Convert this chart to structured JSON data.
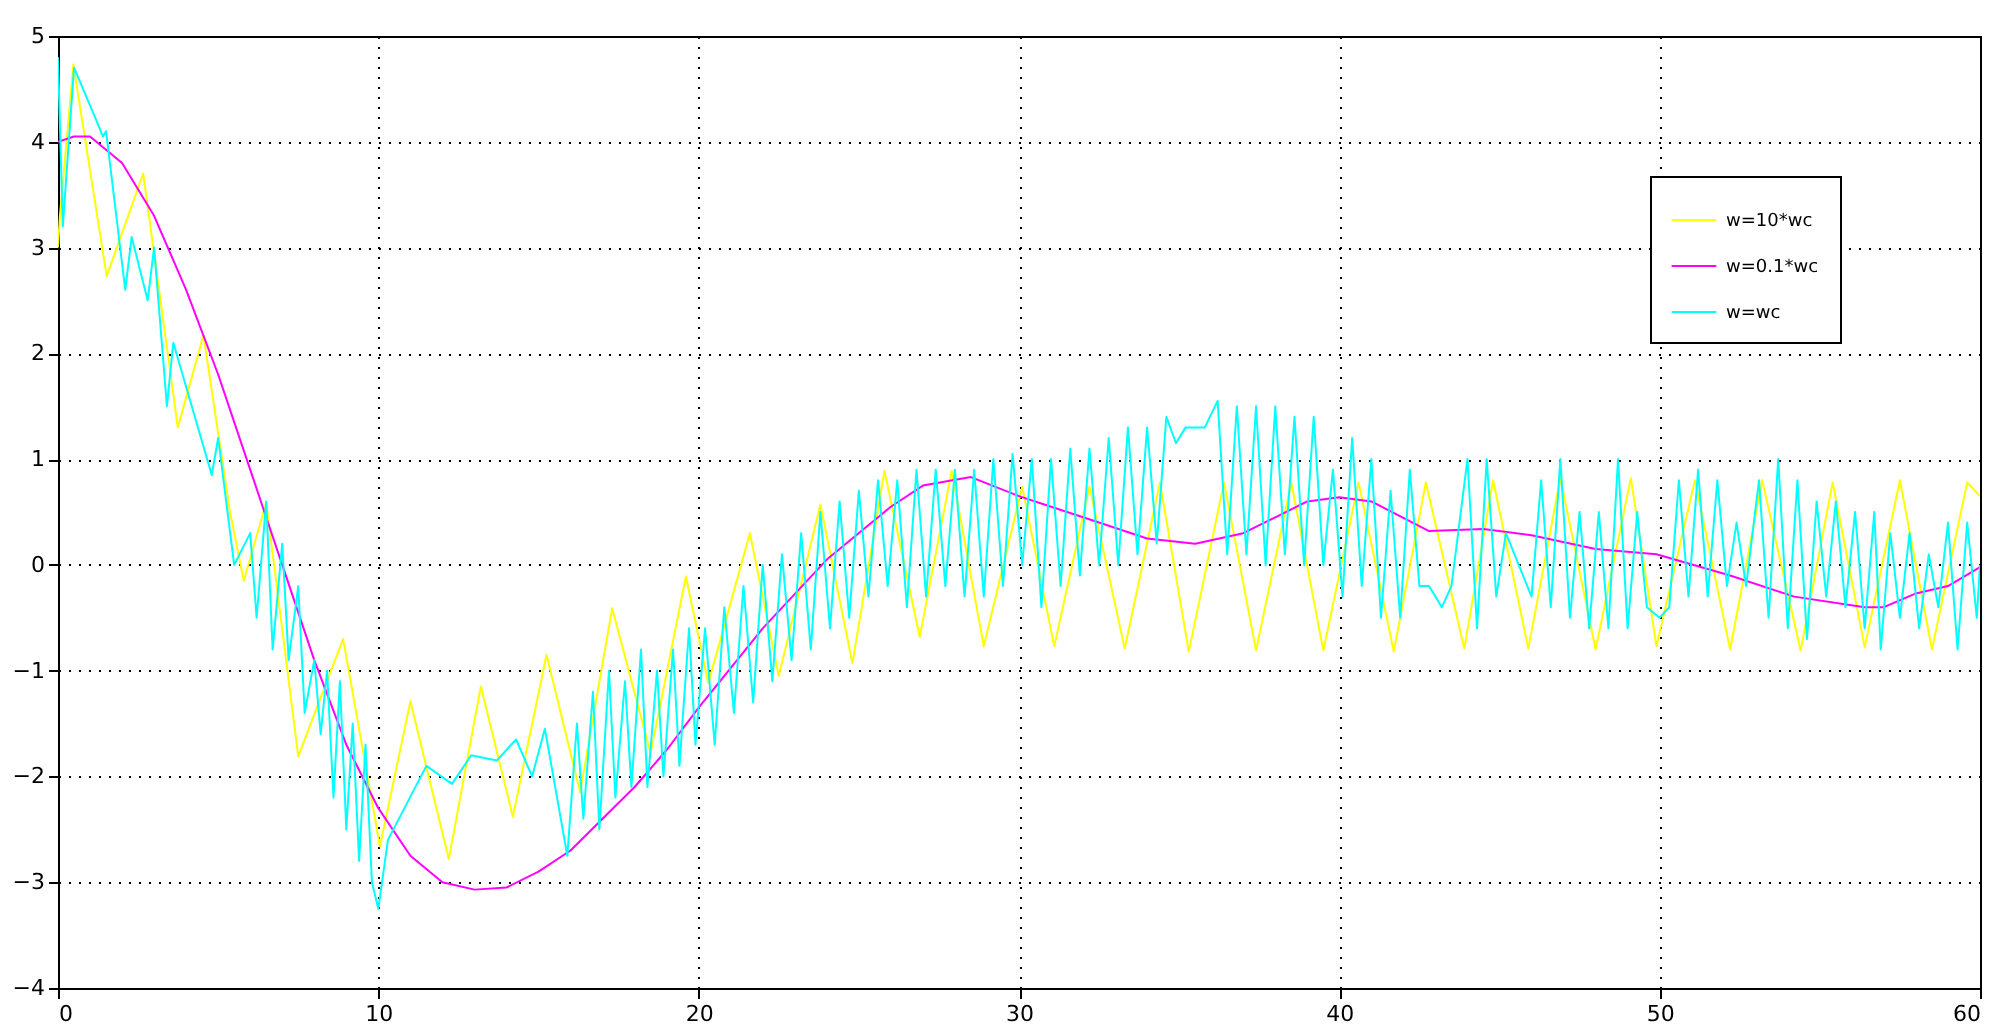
{
  "chart_data": {
    "type": "line",
    "xlim": [
      0,
      60
    ],
    "ylim": [
      -4,
      5
    ],
    "xticks": [
      0,
      10,
      20,
      30,
      40,
      50,
      60
    ],
    "yticks": [
      -4,
      -3,
      -2,
      -1,
      0,
      1,
      2,
      3,
      4,
      5
    ],
    "grid": true,
    "legend": "top right",
    "line_style": "solid",
    "series": [
      {
        "name": "w=10*wc",
        "color": "#ffff00",
        "x": [
          0,
          0.06,
          0.48,
          1.52,
          2.66,
          3.74,
          4.54,
          5.37,
          5.8,
          6.5,
          7.5,
          8.9,
          10.05,
          11.0,
          12.2,
          13.2,
          14.2,
          15.25,
          16.3,
          17.3,
          18.5,
          19.6,
          20.3,
          21.6,
          22.5,
          23.8,
          24.8,
          25.8,
          26.9,
          27.9,
          28.9,
          30.1,
          31.1,
          32.2,
          33.3,
          34.4,
          35.3,
          36.4,
          37.4,
          38.5,
          39.5,
          40.6,
          41.7,
          42.7,
          43.9,
          44.8,
          45.9,
          46.9,
          48.0,
          49.1,
          49.9,
          51.1,
          52.2,
          53.2,
          54.4,
          55.4,
          56.4,
          57.5,
          58.5,
          59.6,
          60
        ],
        "values": [
          3.0,
          3.3,
          4.73,
          2.73,
          3.7,
          1.3,
          2.17,
          0.5,
          -0.15,
          0.59,
          -1.81,
          -0.7,
          -2.66,
          -1.29,
          -2.78,
          -1.15,
          -2.38,
          -0.85,
          -2.15,
          -0.41,
          -1.78,
          -0.11,
          -1.12,
          0.3,
          -1.05,
          0.57,
          -0.93,
          0.89,
          -0.68,
          0.89,
          -0.77,
          0.74,
          -0.77,
          0.74,
          -0.79,
          0.78,
          -0.82,
          0.78,
          -0.81,
          0.78,
          -0.81,
          0.78,
          -0.82,
          0.78,
          -0.79,
          0.8,
          -0.79,
          0.82,
          -0.8,
          0.82,
          -0.77,
          0.8,
          -0.8,
          0.8,
          -0.81,
          0.78,
          -0.78,
          0.8,
          -0.8,
          0.78,
          0.65
        ]
      },
      {
        "name": "w=0.1*wc",
        "color": "#ff00ff",
        "x": [
          0,
          0.5,
          1,
          2,
          3,
          4,
          5,
          6,
          7,
          8,
          9,
          10,
          11,
          12,
          13,
          14,
          15,
          16,
          17,
          18,
          19,
          20,
          22,
          24,
          26,
          27,
          28.5,
          30,
          31,
          32,
          34,
          35.5,
          37,
          38,
          39,
          40,
          41,
          42.8,
          44.5,
          46,
          48,
          49.9,
          52.2,
          54.2,
          56.4,
          57,
          58,
          59,
          60
        ],
        "values": [
          4.0,
          4.05,
          4.05,
          3.8,
          3.3,
          2.6,
          1.8,
          0.9,
          0.0,
          -0.9,
          -1.7,
          -2.3,
          -2.75,
          -3.0,
          -3.07,
          -3.05,
          -2.9,
          -2.7,
          -2.4,
          -2.1,
          -1.75,
          -1.35,
          -0.6,
          0.05,
          0.55,
          0.75,
          0.83,
          0.65,
          0.55,
          0.45,
          0.25,
          0.2,
          0.3,
          0.45,
          0.6,
          0.64,
          0.6,
          0.32,
          0.34,
          0.28,
          0.15,
          0.1,
          -0.1,
          -0.3,
          -0.4,
          -0.4,
          -0.27,
          -0.2,
          -0.02
        ]
      },
      {
        "name": "w=wc",
        "color": "#00ffff",
        "x": [
          0,
          0.15,
          0.5,
          1.2,
          1.4,
          1.5,
          2.1,
          2.3,
          2.8,
          3.0,
          3.4,
          3.6,
          4.8,
          5.0,
          5.5,
          6.0,
          6.2,
          6.5,
          6.7,
          7.0,
          7.2,
          7.5,
          7.7,
          8.0,
          8.2,
          8.4,
          8.6,
          8.8,
          9.0,
          9.2,
          9.4,
          9.6,
          9.8,
          10.0,
          10.3,
          11.5,
          12.3,
          12.9,
          13.7,
          14.3,
          14.8,
          15.2,
          15.9,
          16.2,
          16.4,
          16.7,
          16.9,
          17.2,
          17.4,
          17.7,
          17.9,
          18.2,
          18.4,
          18.7,
          18.9,
          19.2,
          19.4,
          19.7,
          19.9,
          20.2,
          20.5,
          20.8,
          21.1,
          21.4,
          21.7,
          22.0,
          22.3,
          22.6,
          22.9,
          23.2,
          23.5,
          23.8,
          24.1,
          24.4,
          24.7,
          25.0,
          25.3,
          25.6,
          25.9,
          26.2,
          26.5,
          26.8,
          27.1,
          27.4,
          27.7,
          28.0,
          28.3,
          28.6,
          28.9,
          29.2,
          29.5,
          29.8,
          30.1,
          30.4,
          30.7,
          31.0,
          31.3,
          31.6,
          31.9,
          32.2,
          32.5,
          32.8,
          33.1,
          33.4,
          33.7,
          34.0,
          34.3,
          34.6,
          34.9,
          35.2,
          35.5,
          35.8,
          36.2,
          36.5,
          36.8,
          37.1,
          37.4,
          37.7,
          38.0,
          38.3,
          38.6,
          38.9,
          39.2,
          39.5,
          39.8,
          40.1,
          40.4,
          40.7,
          41.0,
          41.3,
          41.6,
          41.9,
          42.2,
          42.5,
          42.8,
          43.2,
          43.5,
          44.0,
          44.3,
          44.6,
          44.9,
          45.2,
          45.6,
          46.0,
          46.3,
          46.6,
          46.9,
          47.2,
          47.5,
          47.8,
          48.1,
          48.4,
          48.7,
          49.0,
          49.3,
          49.6,
          50.0,
          50.3,
          50.6,
          50.9,
          51.2,
          51.5,
          51.8,
          52.1,
          52.4,
          52.7,
          53.1,
          53.4,
          53.7,
          54.0,
          54.3,
          54.6,
          54.9,
          55.2,
          55.5,
          55.8,
          56.1,
          56.4,
          56.7,
          56.9,
          57.2,
          57.5,
          57.8,
          58.1,
          58.4,
          58.7,
          59.0,
          59.3,
          59.6,
          59.9,
          60.0
        ],
        "values": [
          4.8,
          3.2,
          4.7,
          4.2,
          4.05,
          4.1,
          2.6,
          3.1,
          2.5,
          3.0,
          1.5,
          2.1,
          0.85,
          1.2,
          0.0,
          0.3,
          -0.5,
          0.6,
          -0.8,
          0.2,
          -0.9,
          -0.2,
          -1.4,
          -0.9,
          -1.6,
          -1.0,
          -2.2,
          -1.1,
          -2.5,
          -1.5,
          -2.8,
          -1.7,
          -3.0,
          -3.25,
          -2.6,
          -1.9,
          -2.07,
          -1.8,
          -1.85,
          -1.65,
          -2.0,
          -1.55,
          -2.75,
          -1.5,
          -2.4,
          -1.2,
          -2.5,
          -1.0,
          -2.2,
          -1.1,
          -2.1,
          -0.8,
          -2.1,
          -1.0,
          -2.0,
          -0.8,
          -1.9,
          -0.6,
          -1.7,
          -0.6,
          -1.7,
          -0.4,
          -1.4,
          -0.2,
          -1.3,
          0.0,
          -1.1,
          0.1,
          -0.9,
          0.3,
          -0.8,
          0.5,
          -0.6,
          0.6,
          -0.5,
          0.7,
          -0.3,
          0.8,
          -0.2,
          0.8,
          -0.4,
          0.9,
          -0.3,
          0.9,
          -0.2,
          0.9,
          -0.3,
          0.9,
          -0.3,
          1.0,
          -0.2,
          1.05,
          0.0,
          1.0,
          -0.4,
          1.0,
          -0.2,
          1.1,
          -0.1,
          1.1,
          0.0,
          1.2,
          0.0,
          1.3,
          0.1,
          1.3,
          0.2,
          1.4,
          1.15,
          1.3,
          1.3,
          1.3,
          1.55,
          0.1,
          1.5,
          0.1,
          1.5,
          0.0,
          1.5,
          0.1,
          1.4,
          0.0,
          1.4,
          0.0,
          0.9,
          -0.3,
          1.2,
          -0.2,
          1.0,
          -0.5,
          0.7,
          -0.5,
          0.9,
          -0.2,
          -0.2,
          -0.4,
          -0.2,
          1.0,
          -0.6,
          1.0,
          -0.3,
          0.3,
          0.0,
          -0.3,
          0.8,
          -0.4,
          1.0,
          -0.5,
          0.5,
          -0.6,
          0.5,
          -0.6,
          1.0,
          -0.6,
          0.5,
          -0.4,
          -0.5,
          -0.4,
          0.8,
          -0.3,
          0.9,
          -0.3,
          0.8,
          -0.2,
          0.4,
          -0.2,
          0.8,
          -0.5,
          1.0,
          -0.6,
          0.8,
          -0.7,
          0.6,
          -0.3,
          0.6,
          -0.4,
          0.5,
          -0.6,
          0.5,
          -0.8,
          0.3,
          -0.5,
          0.3,
          -0.6,
          0.1,
          -0.4,
          0.4,
          -0.8,
          0.4,
          -0.5,
          0.0
        ]
      }
    ]
  }
}
